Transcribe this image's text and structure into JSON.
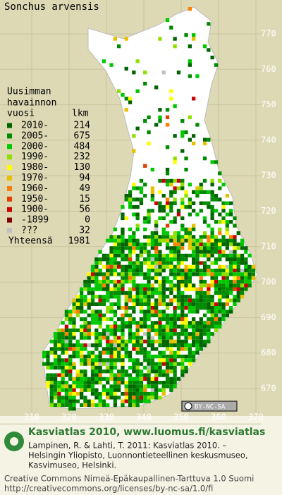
{
  "title": "Sonchus arvensis",
  "legend": {
    "heading": [
      "Uusimman",
      "havainnon"
    ],
    "col_year": "vuosi",
    "col_count": "lkm",
    "rows": [
      {
        "label": "2010-",
        "count": 214,
        "color": "#006400"
      },
      {
        "label": "2005-",
        "count": 675,
        "color": "#008a00"
      },
      {
        "label": "2000-",
        "count": 484,
        "color": "#00c800"
      },
      {
        "label": "1990-",
        "count": 232,
        "color": "#8ee000"
      },
      {
        "label": "1980-",
        "count": 130,
        "color": "#ffff00"
      },
      {
        "label": "1970-",
        "count": 94,
        "color": "#e8c000"
      },
      {
        "label": "1960-",
        "count": 49,
        "color": "#ff8000"
      },
      {
        "label": "1950-",
        "count": 15,
        "color": "#e04000"
      },
      {
        "label": "1900-",
        "count": 56,
        "color": "#c80000"
      },
      {
        "label": "-1899",
        "count": 0,
        "color": "#800000"
      },
      {
        "label": "???",
        "count": 32,
        "color": "#c0c0c0"
      }
    ],
    "total_label": "Yhteensä",
    "total": 1981
  },
  "y_labels": [
    "770",
    "760",
    "750",
    "740",
    "730",
    "720",
    "710",
    "700",
    "690",
    "680",
    "670"
  ],
  "x_labels": [
    "310",
    "320",
    "330",
    "340",
    "350",
    "360",
    "370"
  ],
  "badge": "BY-NC-SA",
  "footer": {
    "headline": "Kasviatlas 2010, www.luomus.fi/kasviatlas",
    "citation": [
      "Lampinen, R. & Lahti, T. 2011: Kasviatlas 2010. –",
      "Helsingin Yliopisto, Luonnontieteellinen keskusmuseo,",
      "Kasvimuseo, Helsinki."
    ],
    "license": [
      "Creative Commons Nimeä-Epäkaupallinen-Tarttuva 1.0 Suomi",
      "http://creativecommons.org/licenses/by-nc-sa/1.0/fi"
    ]
  }
}
